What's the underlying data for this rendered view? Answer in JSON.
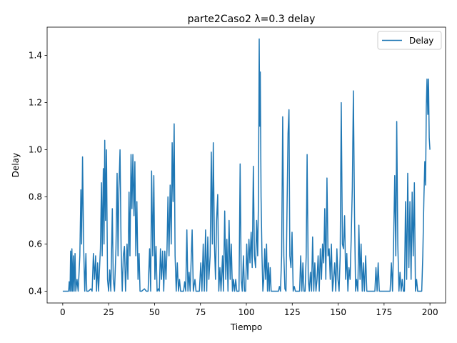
{
  "chart_data": {
    "type": "line",
    "title": "parte2Caso2 λ=0.3 delay",
    "xlabel": "Tiempo",
    "ylabel": "Delay",
    "xlim": [
      -8.5,
      208.5
    ],
    "ylim": [
      0.35,
      1.52
    ],
    "xticks": [
      0,
      25,
      50,
      75,
      100,
      125,
      150,
      175,
      200
    ],
    "yticks": [
      0.4,
      0.6,
      0.8,
      1.0,
      1.2,
      1.4
    ],
    "ytick_labels": [
      "0.4",
      "0.6",
      "0.8",
      "1.0",
      "1.2",
      "1.4"
    ],
    "legend_position": "upper right",
    "color": "#1f77b4",
    "series": [
      {
        "name": "Delay",
        "points": [
          [
            0,
            0.4
          ],
          [
            3.2,
            0.4
          ],
          [
            3.5,
            0.44
          ],
          [
            4,
            0.4
          ],
          [
            4.3,
            0.57
          ],
          [
            4.7,
            0.4
          ],
          [
            5,
            0.58
          ],
          [
            5.4,
            0.4
          ],
          [
            5.8,
            0.55
          ],
          [
            6.2,
            0.4
          ],
          [
            6.7,
            0.56
          ],
          [
            7.1,
            0.4
          ],
          [
            7.8,
            0.45
          ],
          [
            8.4,
            0.4
          ],
          [
            9.3,
            0.55
          ],
          [
            9.9,
            0.83
          ],
          [
            10.3,
            0.6
          ],
          [
            10.8,
            0.97
          ],
          [
            11.4,
            0.58
          ],
          [
            12,
            0.4
          ],
          [
            12.6,
            0.56
          ],
          [
            13.1,
            0.4
          ],
          [
            14,
            0.4
          ],
          [
            15.3,
            0.41
          ],
          [
            16,
            0.4
          ],
          [
            16.7,
            0.56
          ],
          [
            17.3,
            0.45
          ],
          [
            17.9,
            0.55
          ],
          [
            18.4,
            0.4
          ],
          [
            19,
            0.52
          ],
          [
            19.5,
            0.4
          ],
          [
            20.5,
            0.58
          ],
          [
            21.1,
            0.86
          ],
          [
            21.5,
            0.55
          ],
          [
            22.1,
            0.92
          ],
          [
            22.5,
            0.6
          ],
          [
            22.9,
            1.04
          ],
          [
            23.3,
            0.7
          ],
          [
            23.8,
            1.0
          ],
          [
            24.4,
            0.45
          ],
          [
            25,
            0.4
          ],
          [
            25.6,
            0.49
          ],
          [
            26.2,
            0.4
          ],
          [
            27,
            0.75
          ],
          [
            27.5,
            0.45
          ],
          [
            28.2,
            0.4
          ],
          [
            29,
            0.58
          ],
          [
            29.6,
            0.9
          ],
          [
            30.1,
            0.55
          ],
          [
            30.6,
            0.83
          ],
          [
            31.2,
            1.0
          ],
          [
            31.8,
            0.58
          ],
          [
            32.4,
            0.4
          ],
          [
            33,
            0.55
          ],
          [
            33.6,
            0.59
          ],
          [
            34.2,
            0.4
          ],
          [
            35,
            0.6
          ],
          [
            35.5,
            0.45
          ],
          [
            36.1,
            0.82
          ],
          [
            36.6,
            0.55
          ],
          [
            37.2,
            0.98
          ],
          [
            37.7,
            0.75
          ],
          [
            38.2,
            0.98
          ],
          [
            38.8,
            0.72
          ],
          [
            39.3,
            0.95
          ],
          [
            39.8,
            0.55
          ],
          [
            40.4,
            0.78
          ],
          [
            41,
            0.45
          ],
          [
            41.6,
            0.56
          ],
          [
            42.1,
            0.4
          ],
          [
            43,
            0.4
          ],
          [
            44.5,
            0.41
          ],
          [
            45.5,
            0.4
          ],
          [
            46.5,
            0.4
          ],
          [
            47.3,
            0.58
          ],
          [
            47.9,
            0.4
          ],
          [
            48.4,
            0.91
          ],
          [
            49,
            0.55
          ],
          [
            49.6,
            0.89
          ],
          [
            50.2,
            0.45
          ],
          [
            50.8,
            0.59
          ],
          [
            51.4,
            0.4
          ],
          [
            52,
            0.41
          ],
          [
            52.6,
            0.4
          ],
          [
            53.2,
            0.58
          ],
          [
            53.8,
            0.45
          ],
          [
            54.4,
            0.57
          ],
          [
            55,
            0.4
          ],
          [
            55.6,
            0.57
          ],
          [
            56.2,
            0.45
          ],
          [
            56.8,
            0.58
          ],
          [
            57.3,
            0.8
          ],
          [
            57.9,
            0.55
          ],
          [
            58.5,
            0.85
          ],
          [
            59.1,
            0.6
          ],
          [
            59.6,
            1.03
          ],
          [
            60.1,
            0.78
          ],
          [
            60.7,
            1.11
          ],
          [
            61.2,
            0.55
          ],
          [
            61.8,
            0.4
          ],
          [
            62.4,
            0.52
          ],
          [
            63,
            0.4
          ],
          [
            63.6,
            0.45
          ],
          [
            64.2,
            0.4
          ],
          [
            65.8,
            0.4
          ],
          [
            66.4,
            0.44
          ],
          [
            67,
            0.4
          ],
          [
            67.6,
            0.66
          ],
          [
            68.2,
            0.4
          ],
          [
            68.8,
            0.48
          ],
          [
            69.4,
            0.4
          ],
          [
            70.5,
            0.66
          ],
          [
            71.1,
            0.4
          ],
          [
            72,
            0.45
          ],
          [
            72.6,
            0.4
          ],
          [
            73.4,
            0.4
          ],
          [
            74.4,
            0.4
          ],
          [
            75.2,
            0.52
          ],
          [
            75.8,
            0.4
          ],
          [
            76.5,
            0.6
          ],
          [
            77.1,
            0.4
          ],
          [
            77.8,
            0.66
          ],
          [
            78.4,
            0.4
          ],
          [
            79,
            0.63
          ],
          [
            79.6,
            0.45
          ],
          [
            80.3,
            0.55
          ],
          [
            80.9,
            0.99
          ],
          [
            81.5,
            0.6
          ],
          [
            82,
            1.03
          ],
          [
            82.6,
            0.6
          ],
          [
            83.2,
            0.45
          ],
          [
            83.8,
            0.7
          ],
          [
            84.4,
            0.81
          ],
          [
            85,
            0.4
          ],
          [
            85.6,
            0.5
          ],
          [
            86.2,
            0.4
          ],
          [
            87,
            0.55
          ],
          [
            87.5,
            0.4
          ],
          [
            88.2,
            0.74
          ],
          [
            88.8,
            0.45
          ],
          [
            89.4,
            0.62
          ],
          [
            90,
            0.4
          ],
          [
            90.6,
            0.7
          ],
          [
            91.2,
            0.45
          ],
          [
            91.8,
            0.6
          ],
          [
            92.4,
            0.4
          ],
          [
            93,
            0.45
          ],
          [
            93.6,
            0.4
          ],
          [
            94.2,
            0.45
          ],
          [
            94.8,
            0.4
          ],
          [
            96,
            0.4
          ],
          [
            96.6,
            0.94
          ],
          [
            97.2,
            0.45
          ],
          [
            97.8,
            0.4
          ],
          [
            98.4,
            0.55
          ],
          [
            99,
            0.4
          ],
          [
            99.6,
            0.4
          ],
          [
            100.2,
            0.6
          ],
          [
            100.8,
            0.45
          ],
          [
            101.4,
            0.62
          ],
          [
            102,
            0.52
          ],
          [
            102.6,
            0.65
          ],
          [
            103.2,
            0.5
          ],
          [
            103.8,
            0.93
          ],
          [
            104.4,
            0.55
          ],
          [
            105,
            0.5
          ],
          [
            105.6,
            0.7
          ],
          [
            106.2,
            0.55
          ],
          [
            106.6,
            0.8
          ],
          [
            107,
            1.47
          ],
          [
            107.3,
            1.1
          ],
          [
            107.6,
            1.33
          ],
          [
            108,
            0.8
          ],
          [
            108.5,
            0.55
          ],
          [
            109,
            0.4
          ],
          [
            109.5,
            0.45
          ],
          [
            110,
            0.58
          ],
          [
            110.5,
            0.45
          ],
          [
            111,
            0.6
          ],
          [
            111.5,
            0.4
          ],
          [
            112,
            0.52
          ],
          [
            112.5,
            0.4
          ],
          [
            113,
            0.5
          ],
          [
            113.5,
            0.4
          ],
          [
            114,
            0.4
          ],
          [
            117.5,
            0.4
          ],
          [
            118,
            0.42
          ],
          [
            118.6,
            0.4
          ],
          [
            119.2,
            0.55
          ],
          [
            119.8,
            1.14
          ],
          [
            120.4,
            0.55
          ],
          [
            121,
            0.41
          ],
          [
            121.6,
            0.4
          ],
          [
            122.2,
            0.78
          ],
          [
            122.7,
            1.07
          ],
          [
            123.2,
            1.17
          ],
          [
            123.7,
            0.55
          ],
          [
            124.3,
            0.5
          ],
          [
            124.9,
            0.65
          ],
          [
            125.5,
            0.4
          ],
          [
            126.1,
            0.42
          ],
          [
            126.7,
            0.4
          ],
          [
            127.5,
            0.4
          ],
          [
            128.2,
            0.4
          ],
          [
            129,
            0.4
          ],
          [
            129.6,
            0.55
          ],
          [
            130.2,
            0.4
          ],
          [
            130.8,
            0.52
          ],
          [
            131.4,
            0.4
          ],
          [
            132,
            0.4
          ],
          [
            132.6,
            0.55
          ],
          [
            133.1,
            0.98
          ],
          [
            133.7,
            0.45
          ],
          [
            134.3,
            0.4
          ],
          [
            134.9,
            0.48
          ],
          [
            135.5,
            0.4
          ],
          [
            136.1,
            0.63
          ],
          [
            136.7,
            0.4
          ],
          [
            137.3,
            0.52
          ],
          [
            137.9,
            0.4
          ],
          [
            138.5,
            0.45
          ],
          [
            139.1,
            0.55
          ],
          [
            139.7,
            0.4
          ],
          [
            140.3,
            0.58
          ],
          [
            140.9,
            0.45
          ],
          [
            141.5,
            0.6
          ],
          [
            142.1,
            0.52
          ],
          [
            142.7,
            0.75
          ],
          [
            143.3,
            0.45
          ],
          [
            143.9,
            0.88
          ],
          [
            144.5,
            0.55
          ],
          [
            145.1,
            0.58
          ],
          [
            145.7,
            0.45
          ],
          [
            146.3,
            0.6
          ],
          [
            146.9,
            0.4
          ],
          [
            147.5,
            0.45
          ],
          [
            148.1,
            0.52
          ],
          [
            148.7,
            0.4
          ],
          [
            149.3,
            0.58
          ],
          [
            149.9,
            0.45
          ],
          [
            150.5,
            0.4
          ],
          [
            151.1,
            0.55
          ],
          [
            151.7,
            1.2
          ],
          [
            152.3,
            0.6
          ],
          [
            152.9,
            0.58
          ],
          [
            153.5,
            0.72
          ],
          [
            154.1,
            0.45
          ],
          [
            154.7,
            0.56
          ],
          [
            155.3,
            0.4
          ],
          [
            155.9,
            0.5
          ],
          [
            156.5,
            0.45
          ],
          [
            157.1,
            0.62
          ],
          [
            157.7,
            0.84
          ],
          [
            158.3,
            1.25
          ],
          [
            158.9,
            0.72
          ],
          [
            159.5,
            0.4
          ],
          [
            160.1,
            0.45
          ],
          [
            160.7,
            0.4
          ],
          [
            161.3,
            0.68
          ],
          [
            161.9,
            0.45
          ],
          [
            162.5,
            0.6
          ],
          [
            163.1,
            0.4
          ],
          [
            163.7,
            0.52
          ],
          [
            164.3,
            0.4
          ],
          [
            165,
            0.55
          ],
          [
            165.6,
            0.4
          ],
          [
            166.2,
            0.4
          ],
          [
            170,
            0.4
          ],
          [
            170.6,
            0.5
          ],
          [
            171.2,
            0.4
          ],
          [
            171.8,
            0.52
          ],
          [
            172.4,
            0.4
          ],
          [
            173.2,
            0.4
          ],
          [
            174,
            0.4
          ],
          [
            174.5,
            0.4
          ],
          [
            176,
            0.4
          ],
          [
            177.5,
            0.4
          ],
          [
            178.3,
            0.4
          ],
          [
            179,
            0.52
          ],
          [
            179.6,
            0.4
          ],
          [
            180.2,
            0.6
          ],
          [
            180.8,
            0.89
          ],
          [
            181.4,
            0.55
          ],
          [
            181.9,
            1.12
          ],
          [
            182.5,
            0.6
          ],
          [
            183.1,
            0.4
          ],
          [
            183.7,
            0.48
          ],
          [
            184.3,
            0.4
          ],
          [
            184.9,
            0.45
          ],
          [
            185.5,
            0.4
          ],
          [
            186.1,
            0.4
          ],
          [
            186.7,
            0.78
          ],
          [
            187.3,
            0.45
          ],
          [
            187.9,
            0.9
          ],
          [
            188.5,
            0.5
          ],
          [
            189.1,
            0.78
          ],
          [
            189.7,
            0.45
          ],
          [
            190.3,
            0.82
          ],
          [
            190.9,
            0.55
          ],
          [
            191.5,
            0.86
          ],
          [
            192.1,
            0.4
          ],
          [
            192.7,
            0.45
          ],
          [
            193.3,
            0.4
          ],
          [
            194,
            0.4
          ],
          [
            195.5,
            0.4
          ],
          [
            196.1,
            0.55
          ],
          [
            196.7,
            0.8
          ],
          [
            197.2,
            0.95
          ],
          [
            197.6,
            0.85
          ],
          [
            198,
            1.18
          ],
          [
            198.4,
            1.3
          ],
          [
            198.8,
            1.15
          ],
          [
            199.2,
            1.3
          ],
          [
            199.6,
            1.05
          ],
          [
            200,
            1.0
          ]
        ]
      }
    ]
  }
}
